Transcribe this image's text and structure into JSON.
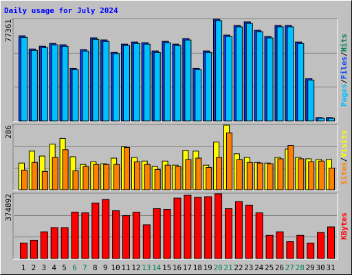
{
  "title": "Daily usage for July 2024",
  "legend_separator": "/",
  "chart_data": [
    {
      "type": "bar",
      "ylim": [
        0,
        77361
      ],
      "yticks": [
        77361
      ],
      "grid_divisions": 3,
      "series": [
        {
          "name": "Hits",
          "color": "#00805c",
          "values": [
            64700,
            54700,
            56800,
            58900,
            57900,
            40000,
            54200,
            63200,
            61600,
            52100,
            58400,
            60000,
            59500,
            53200,
            60500,
            58400,
            62600,
            40000,
            53200,
            77361,
            65300,
            72600,
            75300,
            68900,
            64200,
            72600,
            72600,
            60000,
            32100,
            2600,
            2600
          ]
        },
        {
          "name": "Files",
          "color": "#0040ff",
          "values": [
            64700,
            54700,
            56800,
            58900,
            57900,
            40000,
            54200,
            63200,
            61600,
            52100,
            58400,
            60000,
            59500,
            53200,
            60500,
            58400,
            62600,
            40000,
            53200,
            77361,
            65300,
            72600,
            75300,
            68900,
            64200,
            72600,
            72600,
            60000,
            32100,
            2600,
            2600
          ]
        },
        {
          "name": "Pages",
          "color": "#00c0ff",
          "values": [
            63600,
            53700,
            55800,
            57900,
            56800,
            39000,
            53200,
            62100,
            60500,
            51100,
            57400,
            58900,
            58400,
            52100,
            59500,
            57400,
            61600,
            39000,
            52100,
            76300,
            64200,
            71600,
            74200,
            67900,
            63200,
            71600,
            71600,
            58900,
            31100,
            2100,
            2100
          ]
        }
      ]
    },
    {
      "type": "bar",
      "ylim": [
        0,
        286
      ],
      "yticks": [
        286
      ],
      "grid_divisions": 3,
      "series": [
        {
          "name": "Visits",
          "color": "#ffff00",
          "values": [
            118,
            171,
            149,
            202,
            227,
            146,
            112,
            124,
            115,
            140,
            190,
            143,
            127,
            103,
            127,
            109,
            174,
            171,
            109,
            211,
            286,
            159,
            143,
            121,
            118,
            143,
            180,
            143,
            137,
            134,
            134
          ]
        },
        {
          "name": "Sites",
          "color": "#ff8000",
          "values": [
            87,
            121,
            81,
            143,
            177,
            84,
            103,
            112,
            112,
            112,
            187,
            124,
            112,
            90,
            109,
            103,
            134,
            140,
            99,
            143,
            252,
            134,
            121,
            118,
            115,
            137,
            196,
            137,
            124,
            127,
            96
          ]
        }
      ]
    },
    {
      "type": "bar",
      "ylim": [
        0,
        374892
      ],
      "yticks": [
        374892
      ],
      "grid_divisions": 3,
      "categories": [
        "1",
        "2",
        "3",
        "4",
        "5",
        "6",
        "7",
        "8",
        "9",
        "10",
        "11",
        "12",
        "13",
        "14",
        "15",
        "16",
        "17",
        "18",
        "19",
        "20",
        "21",
        "22",
        "23",
        "24",
        "25",
        "26",
        "27",
        "28",
        "29",
        "30",
        "31"
      ],
      "label_colors": [
        "#000000",
        "#000000",
        "#000000",
        "#000000",
        "#000000",
        "#00805c",
        "#00805c",
        "#000000",
        "#000000",
        "#000000",
        "#000000",
        "#000000",
        "#00805c",
        "#00805c",
        "#000000",
        "#000000",
        "#000000",
        "#000000",
        "#000000",
        "#00805c",
        "#00805c",
        "#000000",
        "#000000",
        "#000000",
        "#000000",
        "#000000",
        "#00805c",
        "#00805c",
        "#000000",
        "#000000",
        "#000000"
      ],
      "series": [
        {
          "name": "KBytes",
          "color": "#ff0000",
          "values": [
            89650,
            105950,
            154850,
            179300,
            179300,
            268950,
            264875,
            321925,
            342300,
            277100,
            248575,
            268950,
            195600,
            289325,
            285250,
            350450,
            366750,
            354525,
            358600,
            374892,
            289325,
            330075,
            309700,
            264875,
            134475,
            154850,
            97800,
            134475,
            89650,
            150775,
            183375
          ]
        }
      ]
    }
  ]
}
